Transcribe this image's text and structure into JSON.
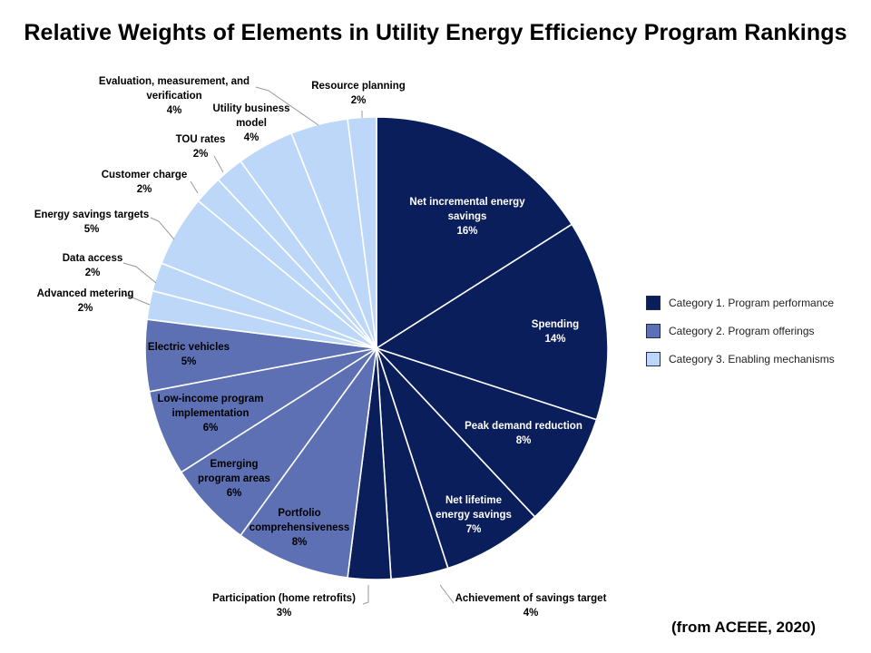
{
  "chart_data": {
    "type": "pie",
    "title": "Relative Weights of Elements in Utility Energy Efficiency Program Rankings",
    "categories": [
      {
        "name": "Category 1. Program performance",
        "color": "#0b1e5c"
      },
      {
        "name": "Category 2. Program offerings",
        "color": "#5d70b3"
      },
      {
        "name": "Category 3. Enabling mechanisms",
        "color": "#bdd7f9"
      }
    ],
    "slices": [
      {
        "lines": [
          "Net incremental energy",
          "savings",
          "16%"
        ],
        "value": 16,
        "category": 0
      },
      {
        "lines": [
          "Spending",
          "14%"
        ],
        "value": 14,
        "category": 0
      },
      {
        "lines": [
          "Peak demand reduction",
          "8%"
        ],
        "value": 8,
        "category": 0
      },
      {
        "lines": [
          "Net lifetime",
          "energy savings",
          "7%"
        ],
        "value": 7,
        "category": 0
      },
      {
        "lines": [
          "Achievement of savings target",
          "4%"
        ],
        "value": 4,
        "category": 0
      },
      {
        "lines": [
          "Participation (home retrofits)",
          "3%"
        ],
        "value": 3,
        "category": 0
      },
      {
        "lines": [
          "Portfolio",
          "comprehensiveness",
          "8%"
        ],
        "value": 8,
        "category": 1
      },
      {
        "lines": [
          "Emerging",
          "program areas",
          "6%"
        ],
        "value": 6,
        "category": 1
      },
      {
        "lines": [
          "Low-income program",
          "implementation",
          "6%"
        ],
        "value": 6,
        "category": 1
      },
      {
        "lines": [
          "Electric vehicles",
          "5%"
        ],
        "value": 5,
        "category": 1
      },
      {
        "lines": [
          "Advanced metering",
          "2%"
        ],
        "value": 2,
        "category": 2
      },
      {
        "lines": [
          "Data access",
          "2%"
        ],
        "value": 2,
        "category": 2
      },
      {
        "lines": [
          "Energy savings targets",
          "5%"
        ],
        "value": 5,
        "category": 2
      },
      {
        "lines": [
          "Customer charge",
          "2%"
        ],
        "value": 2,
        "category": 2
      },
      {
        "lines": [
          "TOU rates",
          "2%"
        ],
        "value": 2,
        "category": 2
      },
      {
        "lines": [
          "Utility business",
          "model",
          "4%"
        ],
        "value": 4,
        "category": 2
      },
      {
        "lines": [
          "Evaluation, measurement, and",
          "verification",
          "4%"
        ],
        "value": 4,
        "category": 2
      },
      {
        "lines": [
          "Resource planning",
          "2%"
        ],
        "value": 2,
        "category": 2
      }
    ],
    "legend_position": "right"
  },
  "source_note": "(from ACEEE, 2020)"
}
